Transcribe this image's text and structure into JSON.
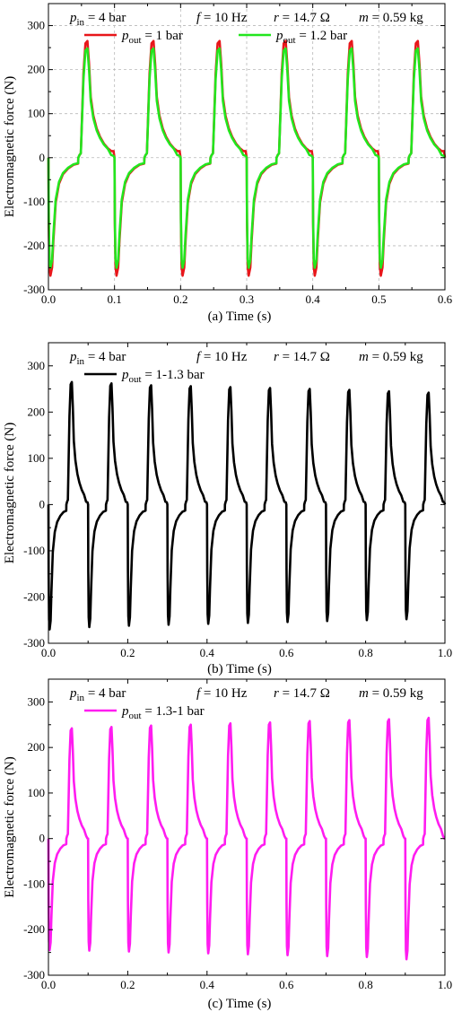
{
  "chart_data": [
    {
      "panel": "(a)",
      "type": "line",
      "xlabel": "Time (s)",
      "ylabel": "Electromagnetic force (N)",
      "xlim": [
        0.0,
        0.6
      ],
      "ylim": [
        -300,
        350
      ],
      "xticks": [
        "0.0",
        "0.1",
        "0.2",
        "0.3",
        "0.4",
        "0.5",
        "0.6"
      ],
      "yticks": [
        "-300",
        "-200",
        "-100",
        "0",
        "100",
        "200",
        "300"
      ],
      "grid": true,
      "legend_position": "top-left",
      "annotations": {
        "p_sym": "p",
        "p_sub": "in",
        "p_val": " = 4 bar",
        "f_sym": "f",
        "f_val": " = 10 Hz",
        "r_sym": "r",
        "r_val": " = 14.7 Ω",
        "m_sym": "m",
        "m_val": " = 0.59 kg"
      },
      "series": [
        {
          "name": {
            "sym": "p",
            "sub": "out",
            "val": " = 1 bar"
          },
          "color": "#e8161a",
          "cycles": 6,
          "period": 0.1,
          "peak": 265,
          "trough": -268,
          "tail_end": 15
        },
        {
          "name": {
            "sym": "p",
            "sub": "out",
            "val": " = 1.2 bar"
          },
          "color": "#22e61e",
          "cycles": 6,
          "period": 0.1,
          "peak": 248,
          "trough": -250,
          "tail_end": 4
        }
      ]
    },
    {
      "panel": "(b)",
      "type": "line",
      "xlabel": "Time (s)",
      "ylabel": "Electromagnetic force (N)",
      "xlim": [
        0.0,
        1.0
      ],
      "ylim": [
        -300,
        350
      ],
      "xticks": [
        "0.0",
        "0.2",
        "0.4",
        "0.6",
        "0.8",
        "1.0"
      ],
      "yticks": [
        "-300",
        "-200",
        "-100",
        "0",
        "100",
        "200",
        "300"
      ],
      "grid": false,
      "legend_position": "top-left",
      "annotations": {
        "p_sym": "p",
        "p_sub": "in",
        "p_val": " = 4 bar",
        "f_sym": "f",
        "f_val": " = 10 Hz",
        "r_sym": "r",
        "r_val": " = 14.7 Ω",
        "m_sym": "m",
        "m_val": " = 0.59 kg"
      },
      "series": [
        {
          "name": {
            "sym": "p",
            "sub": "out",
            "val": " = 1-1.3 bar"
          },
          "color": "#000000",
          "cycles": 10,
          "period": 0.1,
          "peaks": [
            265,
            262,
            258,
            256,
            254,
            252,
            250,
            248,
            245,
            242
          ],
          "troughs": [
            -270,
            -265,
            -262,
            -260,
            -258,
            -256,
            -254,
            -252,
            -250,
            -248
          ],
          "tail_end": 5
        }
      ]
    },
    {
      "panel": "(c)",
      "type": "line",
      "xlabel": "Time (s)",
      "ylabel": "Electromagnetic force (N)",
      "xlim": [
        0.0,
        1.0
      ],
      "ylim": [
        -300,
        350
      ],
      "xticks": [
        "0.0",
        "0.2",
        "0.4",
        "0.6",
        "0.8",
        "1.0"
      ],
      "yticks": [
        "-300",
        "-200",
        "-100",
        "0",
        "100",
        "200",
        "300"
      ],
      "grid": false,
      "legend_position": "top-left",
      "annotations": {
        "p_sym": "p",
        "p_sub": "in",
        "p_val": " = 4 bar",
        "f_sym": "f",
        "f_val": " = 10 Hz",
        "r_sym": "r",
        "r_val": " = 14.7 Ω",
        "m_sym": "m",
        "m_val": " = 0.59 kg"
      },
      "series": [
        {
          "name": {
            "sym": "p",
            "sub": "out",
            "val": " = 1.3-1 bar"
          },
          "color": "#ff1cf0",
          "cycles": 10,
          "period": 0.1,
          "peaks": [
            242,
            245,
            248,
            250,
            253,
            255,
            258,
            260,
            262,
            265
          ],
          "troughs": [
            -245,
            -246,
            -248,
            -250,
            -252,
            -254,
            -256,
            -258,
            -260,
            -265
          ],
          "tail_end": 0
        }
      ]
    }
  ]
}
